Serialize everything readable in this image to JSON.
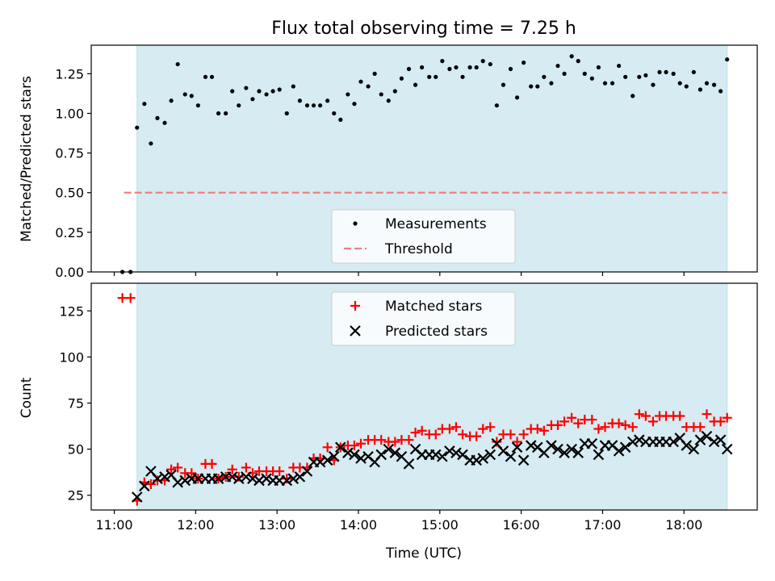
{
  "chart_data": [
    {
      "type": "scatter",
      "title": "Flux total observing time = 7.25 h",
      "xlabel": "",
      "ylabel": "Matched/Predicted stars",
      "xlim": [
        10.717,
        18.9
      ],
      "ylim": [
        0.0,
        1.43
      ],
      "xticks": [
        {
          "value": 11,
          "label": ""
        },
        {
          "value": 12,
          "label": ""
        },
        {
          "value": 13,
          "label": ""
        },
        {
          "value": 14,
          "label": ""
        },
        {
          "value": 15,
          "label": ""
        },
        {
          "value": 16,
          "label": ""
        },
        {
          "value": 17,
          "label": ""
        },
        {
          "value": 18,
          "label": ""
        }
      ],
      "yticks": [
        {
          "value": 0,
          "label": "0.00"
        },
        {
          "value": 0.25,
          "label": "0.25"
        },
        {
          "value": 0.5,
          "label": "0.50"
        },
        {
          "value": 0.75,
          "label": "0.75"
        },
        {
          "value": 1.0,
          "label": "1.00"
        },
        {
          "value": 1.25,
          "label": "1.25"
        }
      ],
      "observing_window": [
        11.28,
        18.53
      ],
      "legend": {
        "placement": "lower-center",
        "entries": [
          "Measurements",
          "Threshold"
        ]
      },
      "threshold": {
        "name": "Threshold",
        "value": 0.5,
        "x_range": [
          11.12,
          18.53
        ],
        "color": "#f08080"
      },
      "series": [
        {
          "name": "Measurements",
          "color": "#000000",
          "x": [
            11.1,
            11.2,
            11.28,
            11.37,
            11.45,
            11.53,
            11.62,
            11.7,
            11.78,
            11.87,
            11.95,
            12.03,
            12.12,
            12.2,
            12.28,
            12.37,
            12.45,
            12.53,
            12.62,
            12.7,
            12.78,
            12.87,
            12.95,
            13.03,
            13.12,
            13.2,
            13.28,
            13.37,
            13.45,
            13.53,
            13.62,
            13.7,
            13.78,
            13.87,
            13.95,
            14.03,
            14.12,
            14.2,
            14.28,
            14.37,
            14.45,
            14.53,
            14.62,
            14.7,
            14.78,
            14.87,
            14.95,
            15.03,
            15.12,
            15.2,
            15.28,
            15.37,
            15.45,
            15.53,
            15.62,
            15.7,
            15.78,
            15.87,
            15.95,
            16.03,
            16.12,
            16.2,
            16.28,
            16.37,
            16.45,
            16.53,
            16.62,
            16.7,
            16.78,
            16.87,
            16.95,
            17.03,
            17.12,
            17.2,
            17.28,
            17.37,
            17.45,
            17.53,
            17.62,
            17.7,
            17.78,
            17.87,
            17.95,
            18.03,
            18.12,
            18.2,
            18.28,
            18.37,
            18.45,
            18.53
          ],
          "values": [
            0.0,
            0.0,
            0.91,
            1.06,
            0.81,
            0.97,
            0.94,
            1.08,
            1.31,
            1.12,
            1.11,
            1.05,
            1.23,
            1.23,
            1.0,
            1.0,
            1.14,
            1.05,
            1.16,
            1.09,
            1.14,
            1.12,
            1.14,
            1.15,
            1.0,
            1.17,
            1.08,
            1.05,
            1.05,
            1.05,
            1.08,
            1.0,
            0.96,
            1.12,
            1.06,
            1.2,
            1.17,
            1.25,
            1.12,
            1.08,
            1.14,
            1.22,
            1.28,
            1.18,
            1.29,
            1.23,
            1.23,
            1.33,
            1.28,
            1.29,
            1.23,
            1.29,
            1.29,
            1.33,
            1.31,
            1.05,
            1.18,
            1.28,
            1.1,
            1.32,
            1.17,
            1.17,
            1.23,
            1.19,
            1.3,
            1.25,
            1.36,
            1.33,
            1.25,
            1.22,
            1.29,
            1.19,
            1.19,
            1.3,
            1.23,
            1.11,
            1.23,
            1.24,
            1.18,
            1.26,
            1.26,
            1.25,
            1.19,
            1.17,
            1.26,
            1.15,
            1.19,
            1.18,
            1.14,
            1.34
          ]
        }
      ]
    },
    {
      "type": "scatter",
      "title": "",
      "xlabel": "Time (UTC)",
      "ylabel": "Count",
      "xlim": [
        10.717,
        18.9
      ],
      "ylim": [
        17,
        140
      ],
      "xticks": [
        {
          "value": 11,
          "label": "11:00"
        },
        {
          "value": 12,
          "label": "12:00"
        },
        {
          "value": 13,
          "label": "13:00"
        },
        {
          "value": 14,
          "label": "14:00"
        },
        {
          "value": 15,
          "label": "15:00"
        },
        {
          "value": 16,
          "label": "16:00"
        },
        {
          "value": 17,
          "label": "17:00"
        },
        {
          "value": 18,
          "label": "18:00"
        }
      ],
      "yticks": [
        {
          "value": 25,
          "label": "25"
        },
        {
          "value": 50,
          "label": "50"
        },
        {
          "value": 75,
          "label": "75"
        },
        {
          "value": 100,
          "label": "100"
        },
        {
          "value": 125,
          "label": "125"
        }
      ],
      "observing_window": [
        11.28,
        18.53
      ],
      "legend": {
        "placement": "top-center",
        "entries": [
          "Matched stars",
          "Predicted stars"
        ]
      },
      "series": [
        {
          "name": "Matched stars",
          "color": "#ff0000",
          "marker": "plus",
          "x": [
            11.1,
            11.2,
            11.28,
            11.37,
            11.45,
            11.53,
            11.62,
            11.7,
            11.78,
            11.87,
            11.95,
            12.03,
            12.12,
            12.2,
            12.28,
            12.37,
            12.45,
            12.53,
            12.62,
            12.7,
            12.78,
            12.87,
            12.95,
            13.03,
            13.12,
            13.2,
            13.28,
            13.37,
            13.45,
            13.53,
            13.62,
            13.7,
            13.78,
            13.87,
            13.95,
            14.03,
            14.12,
            14.2,
            14.28,
            14.37,
            14.45,
            14.53,
            14.62,
            14.7,
            14.78,
            14.87,
            14.95,
            15.03,
            15.12,
            15.2,
            15.28,
            15.37,
            15.45,
            15.53,
            15.62,
            15.7,
            15.78,
            15.87,
            15.95,
            16.03,
            16.12,
            16.2,
            16.28,
            16.37,
            16.45,
            16.53,
            16.62,
            16.7,
            16.78,
            16.87,
            16.95,
            17.03,
            17.12,
            17.2,
            17.28,
            17.37,
            17.45,
            17.53,
            17.62,
            17.7,
            17.78,
            17.87,
            17.95,
            18.03,
            18.12,
            18.2,
            18.28,
            18.37,
            18.45,
            18.53
          ],
          "values": [
            132,
            132,
            22,
            32,
            31,
            33,
            33,
            39,
            40,
            37,
            37,
            34,
            42,
            42,
            34,
            35,
            39,
            35,
            40,
            37,
            38,
            38,
            38,
            38,
            34,
            40,
            40,
            40,
            45,
            45,
            51,
            44,
            51,
            52,
            52,
            53,
            55,
            55,
            55,
            54,
            54,
            55,
            55,
            59,
            60,
            58,
            58,
            61,
            61,
            62,
            58,
            57,
            57,
            61,
            62,
            54,
            58,
            58,
            54,
            58,
            61,
            61,
            60,
            63,
            63,
            65,
            67,
            64,
            66,
            66,
            61,
            62,
            64,
            64,
            63,
            62,
            69,
            68,
            65,
            68,
            68,
            68,
            68,
            62,
            62,
            62,
            69,
            65,
            65,
            67
          ]
        },
        {
          "name": "Predicted stars",
          "color": "#000000",
          "marker": "x",
          "x": [
            11.28,
            11.37,
            11.45,
            11.53,
            11.62,
            11.7,
            11.78,
            11.87,
            11.95,
            12.03,
            12.12,
            12.2,
            12.28,
            12.37,
            12.45,
            12.53,
            12.62,
            12.7,
            12.78,
            12.87,
            12.95,
            13.03,
            13.12,
            13.2,
            13.28,
            13.37,
            13.45,
            13.53,
            13.62,
            13.7,
            13.78,
            13.87,
            13.95,
            14.03,
            14.12,
            14.2,
            14.28,
            14.37,
            14.45,
            14.53,
            14.62,
            14.7,
            14.78,
            14.87,
            14.95,
            15.03,
            15.12,
            15.2,
            15.28,
            15.37,
            15.45,
            15.53,
            15.62,
            15.7,
            15.78,
            15.87,
            15.95,
            16.03,
            16.12,
            16.2,
            16.28,
            16.37,
            16.45,
            16.53,
            16.62,
            16.7,
            16.78,
            16.87,
            16.95,
            17.03,
            17.12,
            17.2,
            17.28,
            17.37,
            17.45,
            17.53,
            17.62,
            17.7,
            17.78,
            17.87,
            17.95,
            18.03,
            18.12,
            18.2,
            18.28,
            18.37,
            18.45,
            18.53
          ],
          "values": [
            24,
            30,
            38,
            34,
            35,
            36,
            32,
            33,
            34,
            34,
            34,
            34,
            34,
            35,
            35,
            34,
            35,
            34,
            33,
            34,
            33,
            33,
            33,
            34,
            35,
            38,
            43,
            43,
            44,
            46,
            51,
            48,
            47,
            45,
            46,
            43,
            47,
            50,
            48,
            46,
            42,
            50,
            47,
            47,
            47,
            46,
            49,
            48,
            47,
            44,
            44,
            45,
            47,
            53,
            49,
            46,
            51,
            44,
            52,
            51,
            48,
            52,
            50,
            48,
            50,
            48,
            53,
            53,
            47,
            52,
            52,
            49,
            51,
            54,
            55,
            54,
            54,
            54,
            54,
            54,
            56,
            52,
            50,
            55,
            57,
            54,
            55,
            50
          ]
        }
      ]
    }
  ]
}
